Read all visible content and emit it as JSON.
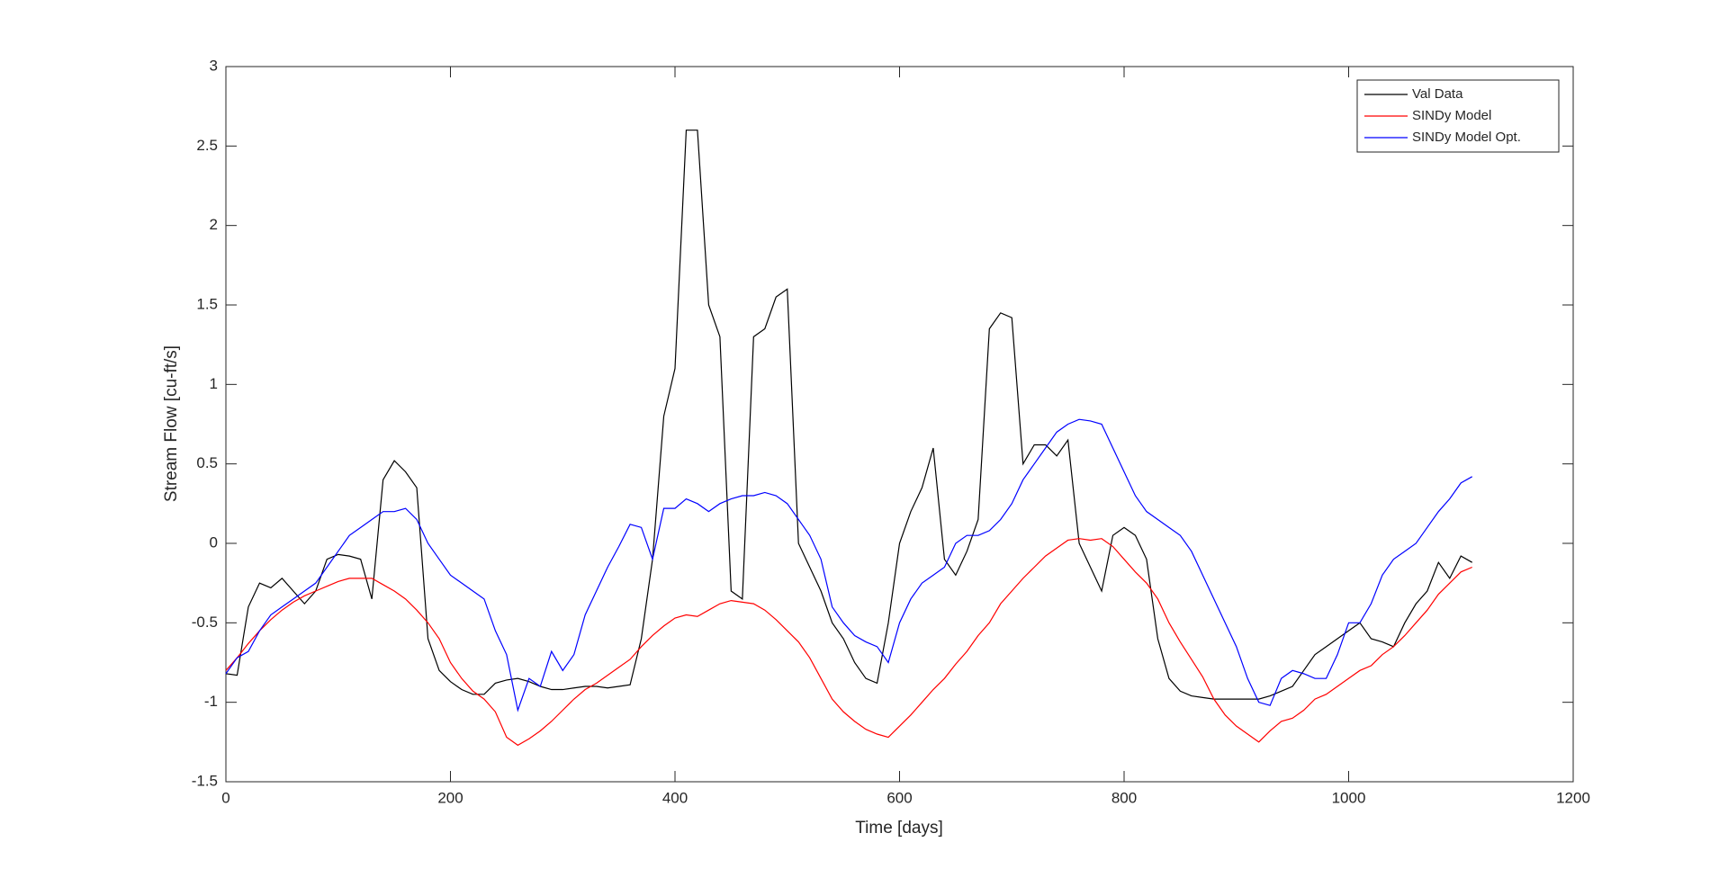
{
  "chart_data": {
    "type": "line",
    "xlabel": "Time [days]",
    "ylabel": "Stream Flow [cu-ft/s]",
    "xlim": [
      0,
      1200
    ],
    "xticks": [
      0,
      200,
      400,
      600,
      800,
      1000,
      1200
    ],
    "ylim": [
      -1.5,
      3
    ],
    "yticks": [
      -1.5,
      -1,
      -0.5,
      0,
      0.5,
      1,
      1.5,
      2,
      2.5,
      3
    ],
    "legend": "northeast",
    "x": [
      0,
      10,
      20,
      30,
      40,
      50,
      60,
      70,
      80,
      90,
      100,
      110,
      120,
      130,
      140,
      150,
      160,
      170,
      180,
      190,
      200,
      210,
      220,
      230,
      240,
      250,
      260,
      270,
      280,
      290,
      300,
      310,
      320,
      330,
      340,
      350,
      360,
      370,
      380,
      390,
      400,
      410,
      420,
      430,
      440,
      450,
      460,
      470,
      480,
      490,
      500,
      510,
      520,
      530,
      540,
      550,
      560,
      570,
      580,
      590,
      600,
      610,
      620,
      630,
      640,
      650,
      660,
      670,
      680,
      690,
      700,
      710,
      720,
      730,
      740,
      750,
      760,
      770,
      780,
      790,
      800,
      810,
      820,
      830,
      840,
      850,
      860,
      870,
      880,
      890,
      900,
      910,
      920,
      930,
      940,
      950,
      960,
      970,
      980,
      990,
      1000,
      1010,
      1020,
      1030,
      1040,
      1050,
      1060,
      1070,
      1080,
      1090,
      1100,
      1110
    ],
    "series": [
      {
        "name": "Val Data",
        "color": "#000000",
        "values": [
          -0.82,
          -0.83,
          -0.4,
          -0.25,
          -0.28,
          -0.22,
          -0.3,
          -0.38,
          -0.3,
          -0.1,
          -0.07,
          -0.08,
          -0.1,
          -0.35,
          0.4,
          0.52,
          0.45,
          0.35,
          -0.6,
          -0.8,
          -0.87,
          -0.92,
          -0.95,
          -0.95,
          -0.88,
          -0.86,
          -0.85,
          -0.87,
          -0.9,
          -0.92,
          -0.92,
          -0.91,
          -0.9,
          -0.9,
          -0.91,
          -0.9,
          -0.89,
          -0.6,
          -0.1,
          0.8,
          1.1,
          2.6,
          2.6,
          1.5,
          1.3,
          -0.3,
          -0.35,
          1.3,
          1.35,
          1.55,
          1.6,
          0.0,
          -0.15,
          -0.3,
          -0.5,
          -0.6,
          -0.75,
          -0.85,
          -0.88,
          -0.5,
          0.0,
          0.2,
          0.35,
          0.6,
          -0.1,
          -0.2,
          -0.05,
          0.15,
          1.35,
          1.45,
          1.42,
          0.5,
          0.62,
          0.62,
          0.55,
          0.65,
          0.0,
          -0.15,
          -0.3,
          0.05,
          0.1,
          0.05,
          -0.1,
          -0.6,
          -0.85,
          -0.93,
          -0.96,
          -0.97,
          -0.98,
          -0.98,
          -0.98,
          -0.98,
          -0.98,
          -0.96,
          -0.93,
          -0.9,
          -0.8,
          -0.7,
          -0.65,
          -0.6,
          -0.55,
          -0.5,
          -0.6,
          -0.62,
          -0.65,
          -0.5,
          -0.38,
          -0.3,
          -0.12,
          -0.22,
          -0.08,
          -0.12
        ]
      },
      {
        "name": "SINDy Model",
        "color": "#ff0000",
        "values": [
          -0.8,
          -0.72,
          -0.63,
          -0.55,
          -0.48,
          -0.42,
          -0.37,
          -0.33,
          -0.3,
          -0.27,
          -0.24,
          -0.22,
          -0.22,
          -0.22,
          -0.26,
          -0.3,
          -0.35,
          -0.42,
          -0.5,
          -0.6,
          -0.75,
          -0.85,
          -0.93,
          -0.98,
          -1.06,
          -1.22,
          -1.27,
          -1.23,
          -1.18,
          -1.12,
          -1.05,
          -0.98,
          -0.92,
          -0.88,
          -0.83,
          -0.78,
          -0.73,
          -0.65,
          -0.58,
          -0.52,
          -0.47,
          -0.45,
          -0.46,
          -0.42,
          -0.38,
          -0.36,
          -0.37,
          -0.38,
          -0.42,
          -0.48,
          -0.55,
          -0.62,
          -0.72,
          -0.85,
          -0.98,
          -1.06,
          -1.12,
          -1.17,
          -1.2,
          -1.22,
          -1.15,
          -1.08,
          -1.0,
          -0.92,
          -0.85,
          -0.76,
          -0.68,
          -0.58,
          -0.5,
          -0.38,
          -0.3,
          -0.22,
          -0.15,
          -0.08,
          -0.03,
          0.02,
          0.03,
          0.02,
          0.03,
          -0.02,
          -0.1,
          -0.18,
          -0.25,
          -0.35,
          -0.5,
          -0.62,
          -0.73,
          -0.84,
          -0.98,
          -1.08,
          -1.15,
          -1.2,
          -1.25,
          -1.18,
          -1.12,
          -1.1,
          -1.05,
          -0.98,
          -0.95,
          -0.9,
          -0.85,
          -0.8,
          -0.77,
          -0.7,
          -0.65,
          -0.58,
          -0.5,
          -0.42,
          -0.32,
          -0.25,
          -0.18,
          -0.15
        ]
      },
      {
        "name": "SINDy Model Opt.",
        "color": "#0000ff",
        "values": [
          -0.82,
          -0.72,
          -0.68,
          -0.55,
          -0.45,
          -0.4,
          -0.35,
          -0.3,
          -0.25,
          -0.15,
          -0.05,
          0.05,
          0.1,
          0.15,
          0.2,
          0.2,
          0.22,
          0.15,
          0.0,
          -0.1,
          -0.2,
          -0.25,
          -0.3,
          -0.35,
          -0.55,
          -0.7,
          -1.05,
          -0.85,
          -0.9,
          -0.68,
          -0.8,
          -0.7,
          -0.45,
          -0.3,
          -0.15,
          -0.02,
          0.12,
          0.1,
          -0.1,
          0.22,
          0.22,
          0.28,
          0.25,
          0.2,
          0.25,
          0.28,
          0.3,
          0.3,
          0.32,
          0.3,
          0.25,
          0.15,
          0.05,
          -0.1,
          -0.4,
          -0.5,
          -0.58,
          -0.62,
          -0.65,
          -0.75,
          -0.5,
          -0.35,
          -0.25,
          -0.2,
          -0.15,
          0.0,
          0.05,
          0.05,
          0.08,
          0.15,
          0.25,
          0.4,
          0.5,
          0.6,
          0.7,
          0.75,
          0.78,
          0.77,
          0.75,
          0.6,
          0.45,
          0.3,
          0.2,
          0.15,
          0.1,
          0.05,
          -0.05,
          -0.2,
          -0.35,
          -0.5,
          -0.65,
          -0.85,
          -1.0,
          -1.02,
          -0.85,
          -0.8,
          -0.82,
          -0.85,
          -0.85,
          -0.7,
          -0.5,
          -0.5,
          -0.38,
          -0.2,
          -0.1,
          -0.05,
          0.0,
          0.1,
          0.2,
          0.28,
          0.38,
          0.42
        ]
      }
    ]
  }
}
